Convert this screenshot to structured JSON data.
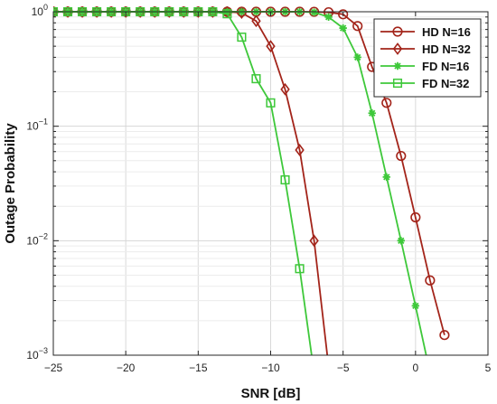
{
  "chart_data": {
    "type": "line",
    "xlabel": "SNR [dB]",
    "ylabel": "Outage Probability",
    "xlim": [
      -25,
      5
    ],
    "ylim": [
      0.001,
      1
    ],
    "yscale": "log",
    "grid": true,
    "legend_position": "top-right",
    "x_ticks": [
      "−25",
      "−20",
      "−15",
      "−10",
      "−5",
      "0",
      "5"
    ],
    "y_ticks": [
      {
        "base": "10",
        "exp": "−3"
      },
      {
        "base": "10",
        "exp": "−2"
      },
      {
        "base": "10",
        "exp": "−1"
      },
      {
        "base": "10",
        "exp": "0"
      }
    ],
    "series": [
      {
        "name": "HD N=16",
        "color": "#a3241a",
        "marker": "circle",
        "x": [
          -25,
          -24,
          -23,
          -22,
          -21,
          -20,
          -19,
          -18,
          -17,
          -16,
          -15,
          -14,
          -13,
          -12,
          -11,
          -10,
          -9,
          -8,
          -7,
          -6,
          -5,
          -4,
          -3,
          -2,
          -1,
          0,
          1,
          2
        ],
        "y": [
          1,
          1,
          1,
          1,
          1,
          1,
          1,
          1,
          1,
          1,
          1,
          1,
          1,
          1,
          1,
          1,
          1,
          1,
          0.999,
          0.99,
          0.95,
          0.75,
          0.33,
          0.16,
          0.055,
          0.016,
          0.0045,
          0.0015
        ]
      },
      {
        "name": "HD N=32",
        "color": "#a3241a",
        "marker": "diamond",
        "x": [
          -25,
          -24,
          -23,
          -22,
          -21,
          -20,
          -19,
          -18,
          -17,
          -16,
          -15,
          -14,
          -13,
          -12,
          -11,
          -10,
          -9,
          -8,
          -7,
          -6
        ],
        "y": [
          1,
          1,
          1,
          1,
          1,
          1,
          1,
          1,
          1,
          1,
          1,
          1,
          1,
          0.98,
          0.83,
          0.5,
          0.21,
          0.062,
          0.01,
          0.0008
        ]
      },
      {
        "name": "FD N=16",
        "color": "#3ec83a",
        "marker": "star",
        "x": [
          -25,
          -24,
          -23,
          -22,
          -21,
          -20,
          -19,
          -18,
          -17,
          -16,
          -15,
          -14,
          -13,
          -12,
          -11,
          -10,
          -9,
          -8,
          -7,
          -6,
          -5,
          -4,
          -3,
          -2,
          -1,
          0,
          1
        ],
        "y": [
          1,
          1,
          1,
          1,
          1,
          1,
          1,
          1,
          1,
          1,
          1,
          1,
          1,
          1,
          1,
          1,
          1,
          1,
          0.99,
          0.9,
          0.72,
          0.4,
          0.13,
          0.036,
          0.01,
          0.0027,
          0.0007
        ]
      },
      {
        "name": "FD N=32",
        "color": "#3ec83a",
        "marker": "square",
        "x": [
          -25,
          -24,
          -23,
          -22,
          -21,
          -20,
          -19,
          -18,
          -17,
          -16,
          -15,
          -14,
          -13,
          -12,
          -11,
          -10,
          -9,
          -8,
          -7
        ],
        "y": [
          1,
          1,
          1,
          1,
          1,
          1,
          1,
          1,
          1,
          1,
          1,
          1,
          0.96,
          0.6,
          0.26,
          0.16,
          0.034,
          0.0057,
          0.0007
        ]
      }
    ]
  }
}
